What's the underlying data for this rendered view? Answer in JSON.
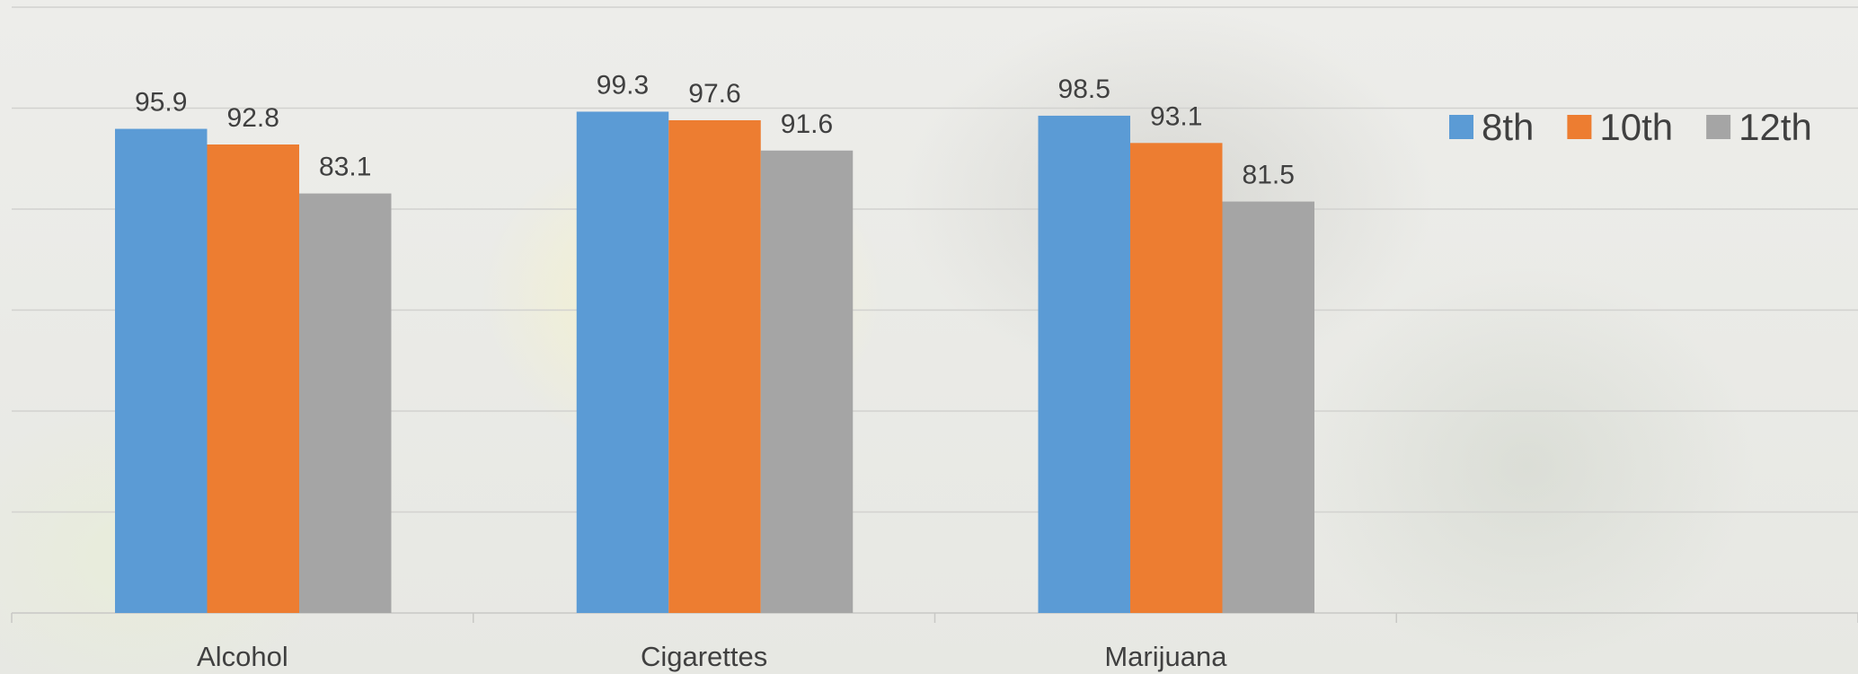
{
  "chart_data": {
    "type": "bar",
    "categories": [
      "Alcohol",
      "Cigarettes",
      "Marijuana",
      ""
    ],
    "series": [
      {
        "name": "8th",
        "color": "#5B9BD5",
        "values": [
          95.9,
          99.3,
          98.5,
          null
        ]
      },
      {
        "name": "10th",
        "color": "#ED7D31",
        "values": [
          92.8,
          97.6,
          93.1,
          null
        ]
      },
      {
        "name": "12th",
        "color": "#A5A5A5",
        "values": [
          83.1,
          91.6,
          81.5,
          null
        ]
      }
    ],
    "ylim": [
      0,
      120
    ],
    "ytick_step": 20,
    "grid": true,
    "legend": "top-right",
    "data_labels": true
  }
}
